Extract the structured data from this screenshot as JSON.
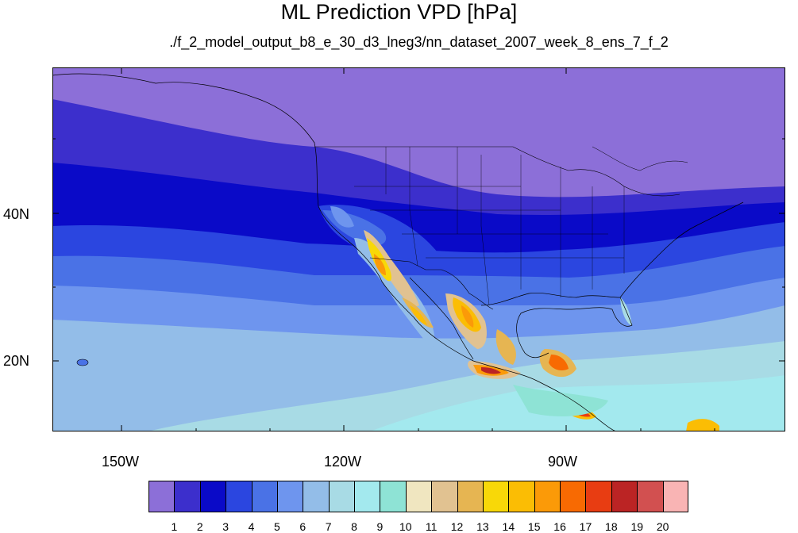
{
  "figure": {
    "title": "ML Prediction VPD [hPa]",
    "subtitle": "./f_2_model_output_b8_e_30_d3_lneg3/nn_dataset_2007_week_8_ens_7_f_2"
  },
  "axes": {
    "x_ticks": [
      "150W",
      "120W",
      "90W"
    ],
    "y_ticks": [
      "40N",
      "20N"
    ]
  },
  "colorbar": {
    "labels": [
      "1",
      "2",
      "3",
      "4",
      "5",
      "6",
      "7",
      "8",
      "9",
      "10",
      "11",
      "12",
      "13",
      "14",
      "15",
      "16",
      "17",
      "18",
      "19",
      "20"
    ],
    "colors": [
      "#8c6fd8",
      "#3c2fcc",
      "#0a0ac8",
      "#2b46e0",
      "#4a72e6",
      "#6e95ee",
      "#93bde8",
      "#a8dbe5",
      "#a3e9ee",
      "#8ee3d5",
      "#f0e6c0",
      "#e1c291",
      "#e6b552",
      "#f8d808",
      "#fbbd04",
      "#fb9a08",
      "#f86a02",
      "#e83d12",
      "#bb2424",
      "#d25050",
      "#f9b4b4"
    ]
  },
  "map": {
    "type": "filled-contour",
    "variable": "VPD",
    "units": "hPa"
  }
}
